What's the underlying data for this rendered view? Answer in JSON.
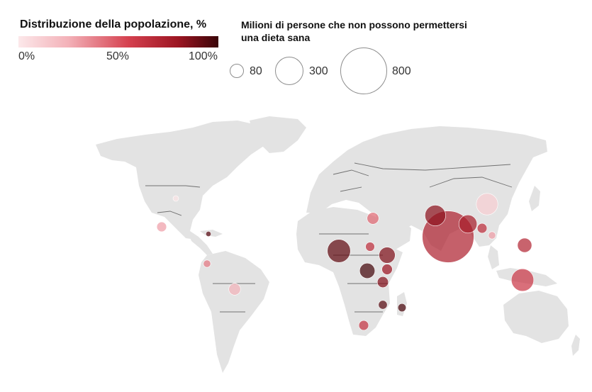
{
  "legend": {
    "color_title": "Distribuzione della popolazione, %",
    "color_ticks": [
      "0%",
      "50%",
      "100%"
    ],
    "size_title": "Milioni di persone che non possono permettersi una dieta sana",
    "size_values": [
      "80",
      "300",
      "800"
    ]
  },
  "colors": {
    "land": "#e3e3e3",
    "border": "#707070",
    "scale_light": "#f6c4c9",
    "scale_mid": "#d5414f",
    "scale_dark": "#5a0a10"
  },
  "chart_data": {
    "type": "bubble-map",
    "color_variable": "Distribuzione della popolazione, %",
    "size_variable": "Milioni di persone che non possono permettersi una dieta sana",
    "color_range": [
      0,
      100
    ],
    "size_legend": [
      80,
      300,
      800
    ],
    "bubbles": [
      {
        "region": "India",
        "share": 72,
        "millions": 973
      },
      {
        "region": "Pakistan",
        "share": 83,
        "millions": 156
      },
      {
        "region": "Bangladesh",
        "share": 75,
        "millions": 121
      },
      {
        "region": "China",
        "share": 12,
        "millions": 170
      },
      {
        "region": "Indonesia",
        "share": 60,
        "millions": 183
      },
      {
        "region": "Philippines",
        "share": 70,
        "millions": 75
      },
      {
        "region": "Myanmar",
        "share": 66,
        "millions": 35
      },
      {
        "region": "Vietnam",
        "share": 30,
        "millions": 20
      },
      {
        "region": "Nigeria",
        "share": 92,
        "millions": 196
      },
      {
        "region": "Ethiopia",
        "share": 86,
        "millions": 95
      },
      {
        "region": "DR Congo",
        "share": 98,
        "millions": 85
      },
      {
        "region": "Tanzania",
        "share": 85,
        "millions": 45
      },
      {
        "region": "Kenya",
        "share": 80,
        "millions": 40
      },
      {
        "region": "Sudan",
        "share": 65,
        "millions": 30
      },
      {
        "region": "Egypt",
        "share": 45,
        "millions": 50
      },
      {
        "region": "Mozambique",
        "share": 94,
        "millions": 28
      },
      {
        "region": "Madagascar",
        "share": 97,
        "millions": 25
      },
      {
        "region": "South Africa",
        "share": 62,
        "millions": 35
      },
      {
        "region": "Brazil",
        "share": 24,
        "millions": 50
      },
      {
        "region": "Mexico",
        "share": 30,
        "millions": 35
      },
      {
        "region": "United States",
        "share": 2,
        "millions": 12
      },
      {
        "region": "Haiti",
        "share": 94,
        "millions": 10
      },
      {
        "region": "Colombia",
        "share": 40,
        "millions": 20
      }
    ]
  }
}
